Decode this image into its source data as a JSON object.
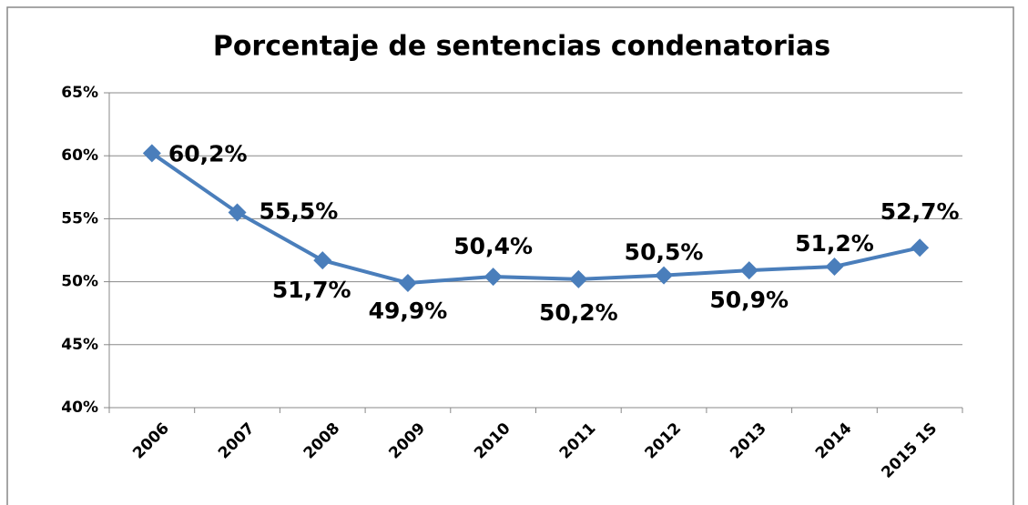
{
  "chart_data": {
    "type": "line",
    "title": "Porcentaje de sentencias condenatorias",
    "categories": [
      "2006",
      "2007",
      "2008",
      "2009",
      "2010",
      "2011",
      "2012",
      "2013",
      "2014",
      "2015 1S"
    ],
    "series": [
      {
        "color": "#4a7ebb",
        "values": [
          60.2,
          55.5,
          51.7,
          49.9,
          50.4,
          50.2,
          50.5,
          50.9,
          51.2,
          52.7
        ],
        "value_labels": [
          "60,2%",
          "55,5%",
          "51,7%",
          "49,9%",
          "50,4%",
          "50,2%",
          "50,5%",
          "50,9%",
          "51,2%",
          "52,7%"
        ]
      }
    ],
    "ylim": [
      40,
      65
    ],
    "yticks": [
      {
        "value": 40,
        "label": "40%"
      },
      {
        "value": 45,
        "label": "45%"
      },
      {
        "value": 50,
        "label": "50%"
      },
      {
        "value": 55,
        "label": "55%"
      },
      {
        "value": 60,
        "label": "60%"
      },
      {
        "value": 65,
        "label": "65%"
      }
    ],
    "grid": true
  }
}
